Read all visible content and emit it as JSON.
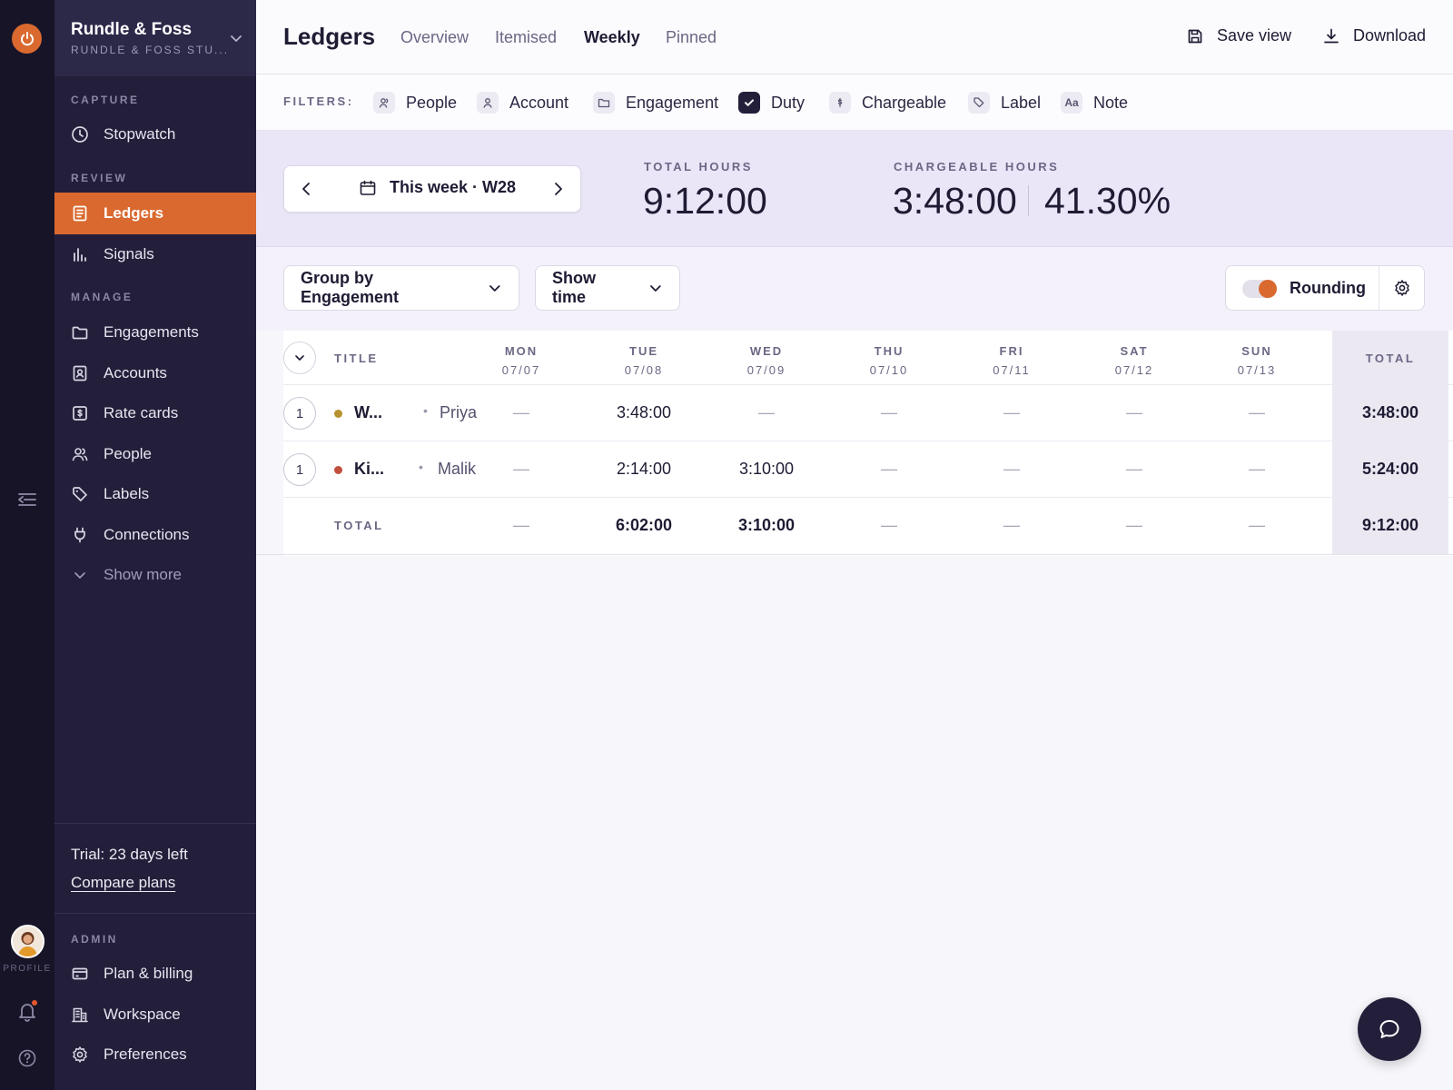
{
  "rail": {
    "profile_label": "PROFILE"
  },
  "workspace": {
    "name": "Rundle & Foss",
    "subtitle": "RUNDLE & FOSS STU..."
  },
  "sidebar": {
    "sections": {
      "capture": "CAPTURE",
      "review": "REVIEW",
      "manage": "MANAGE",
      "admin": "ADMIN"
    },
    "items": {
      "stopwatch": "Stopwatch",
      "ledgers": "Ledgers",
      "signals": "Signals",
      "engagements": "Engagements",
      "accounts": "Accounts",
      "rate_cards": "Rate cards",
      "people": "People",
      "labels": "Labels",
      "connections": "Connections",
      "show_more": "Show more",
      "plan_billing": "Plan & billing",
      "workspace": "Workspace",
      "preferences": "Preferences"
    },
    "trial": {
      "text": "Trial: 23 days left",
      "link": "Compare plans"
    }
  },
  "header": {
    "title": "Ledgers",
    "tabs": [
      "Overview",
      "Itemised",
      "Weekly",
      "Pinned"
    ],
    "active_tab": "Weekly",
    "save_view": "Save view",
    "download": "Download"
  },
  "filters": {
    "label": "FILTERS:",
    "chips": [
      "People",
      "Account",
      "Engagement",
      "Duty",
      "Chargeable",
      "Label",
      "Note"
    ],
    "checked": "Duty",
    "note_icon_text": "Aa"
  },
  "summary": {
    "week_label": "This week · W28",
    "total_hours_label": "TOTAL HOURS",
    "total_hours": "9:12:00",
    "chargeable_label": "CHARGEABLE HOURS",
    "chargeable_hours": "3:48:00",
    "chargeable_pct": "41.30%"
  },
  "toolbar": {
    "group_by": "Group by Engagement",
    "show": "Show time",
    "rounding_label": "Rounding",
    "rounding_on": true
  },
  "table": {
    "title_header": "TITLE",
    "total_header": "TOTAL",
    "days": [
      {
        "day": "MON",
        "date": "07/07"
      },
      {
        "day": "TUE",
        "date": "07/08"
      },
      {
        "day": "WED",
        "date": "07/09"
      },
      {
        "day": "THU",
        "date": "07/10"
      },
      {
        "day": "FRI",
        "date": "07/11"
      },
      {
        "day": "SAT",
        "date": "07/12"
      },
      {
        "day": "SUN",
        "date": "07/13"
      }
    ],
    "rows": [
      {
        "count": "1",
        "name": "W...",
        "person": "Priya",
        "color": "#b8912f",
        "cells": [
          "—",
          "3:48:00",
          "—",
          "—",
          "—",
          "—",
          "—"
        ],
        "total": "3:48:00"
      },
      {
        "count": "1",
        "name": "Ki...",
        "person": "Malik",
        "color": "#c0503e",
        "cells": [
          "—",
          "2:14:00",
          "3:10:00",
          "—",
          "—",
          "—",
          "—"
        ],
        "total": "5:24:00"
      }
    ],
    "totals": {
      "label": "TOTAL",
      "cells": [
        "—",
        "6:02:00",
        "3:10:00",
        "—",
        "—",
        "—",
        "—"
      ],
      "total": "9:12:00"
    }
  },
  "colors": {
    "accent": "#d9692f",
    "sidebar_bg": "#231f3a",
    "rail_bg": "#181428",
    "summary_bg": "#ebe5f8"
  }
}
